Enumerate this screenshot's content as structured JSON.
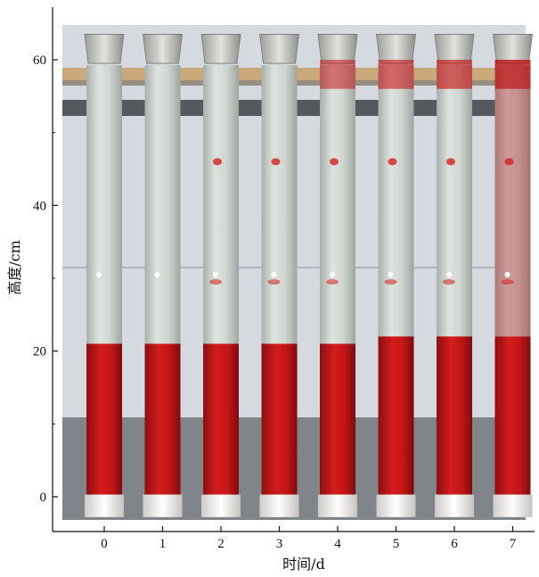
{
  "figure": {
    "x_axis": {
      "label": "时间/d",
      "ticks": [
        "0",
        "1",
        "2",
        "3",
        "4",
        "5",
        "6",
        "7"
      ]
    },
    "y_axis": {
      "label": "高度/cm",
      "ticks": [
        "0",
        "20",
        "40",
        "60"
      ],
      "range": [
        -3,
        67
      ]
    },
    "columns": [
      {
        "day": 0,
        "red_bottom_cm": 21
      },
      {
        "day": 1,
        "red_bottom_cm": 21
      },
      {
        "day": 2,
        "red_bottom_cm": 21
      },
      {
        "day": 3,
        "red_bottom_cm": 21
      },
      {
        "day": 4,
        "red_bottom_cm": 21
      },
      {
        "day": 5,
        "red_bottom_cm": 22
      },
      {
        "day": 6,
        "red_bottom_cm": 22
      },
      {
        "day": 7,
        "red_bottom_cm": 22
      }
    ],
    "colors": {
      "tube_liquid": "#c9cfc9",
      "red_particles": "#c41616",
      "background_wall": "#d4dadf",
      "dark_strip": "#2a2e33",
      "white_base": "#f2f0ee"
    }
  }
}
